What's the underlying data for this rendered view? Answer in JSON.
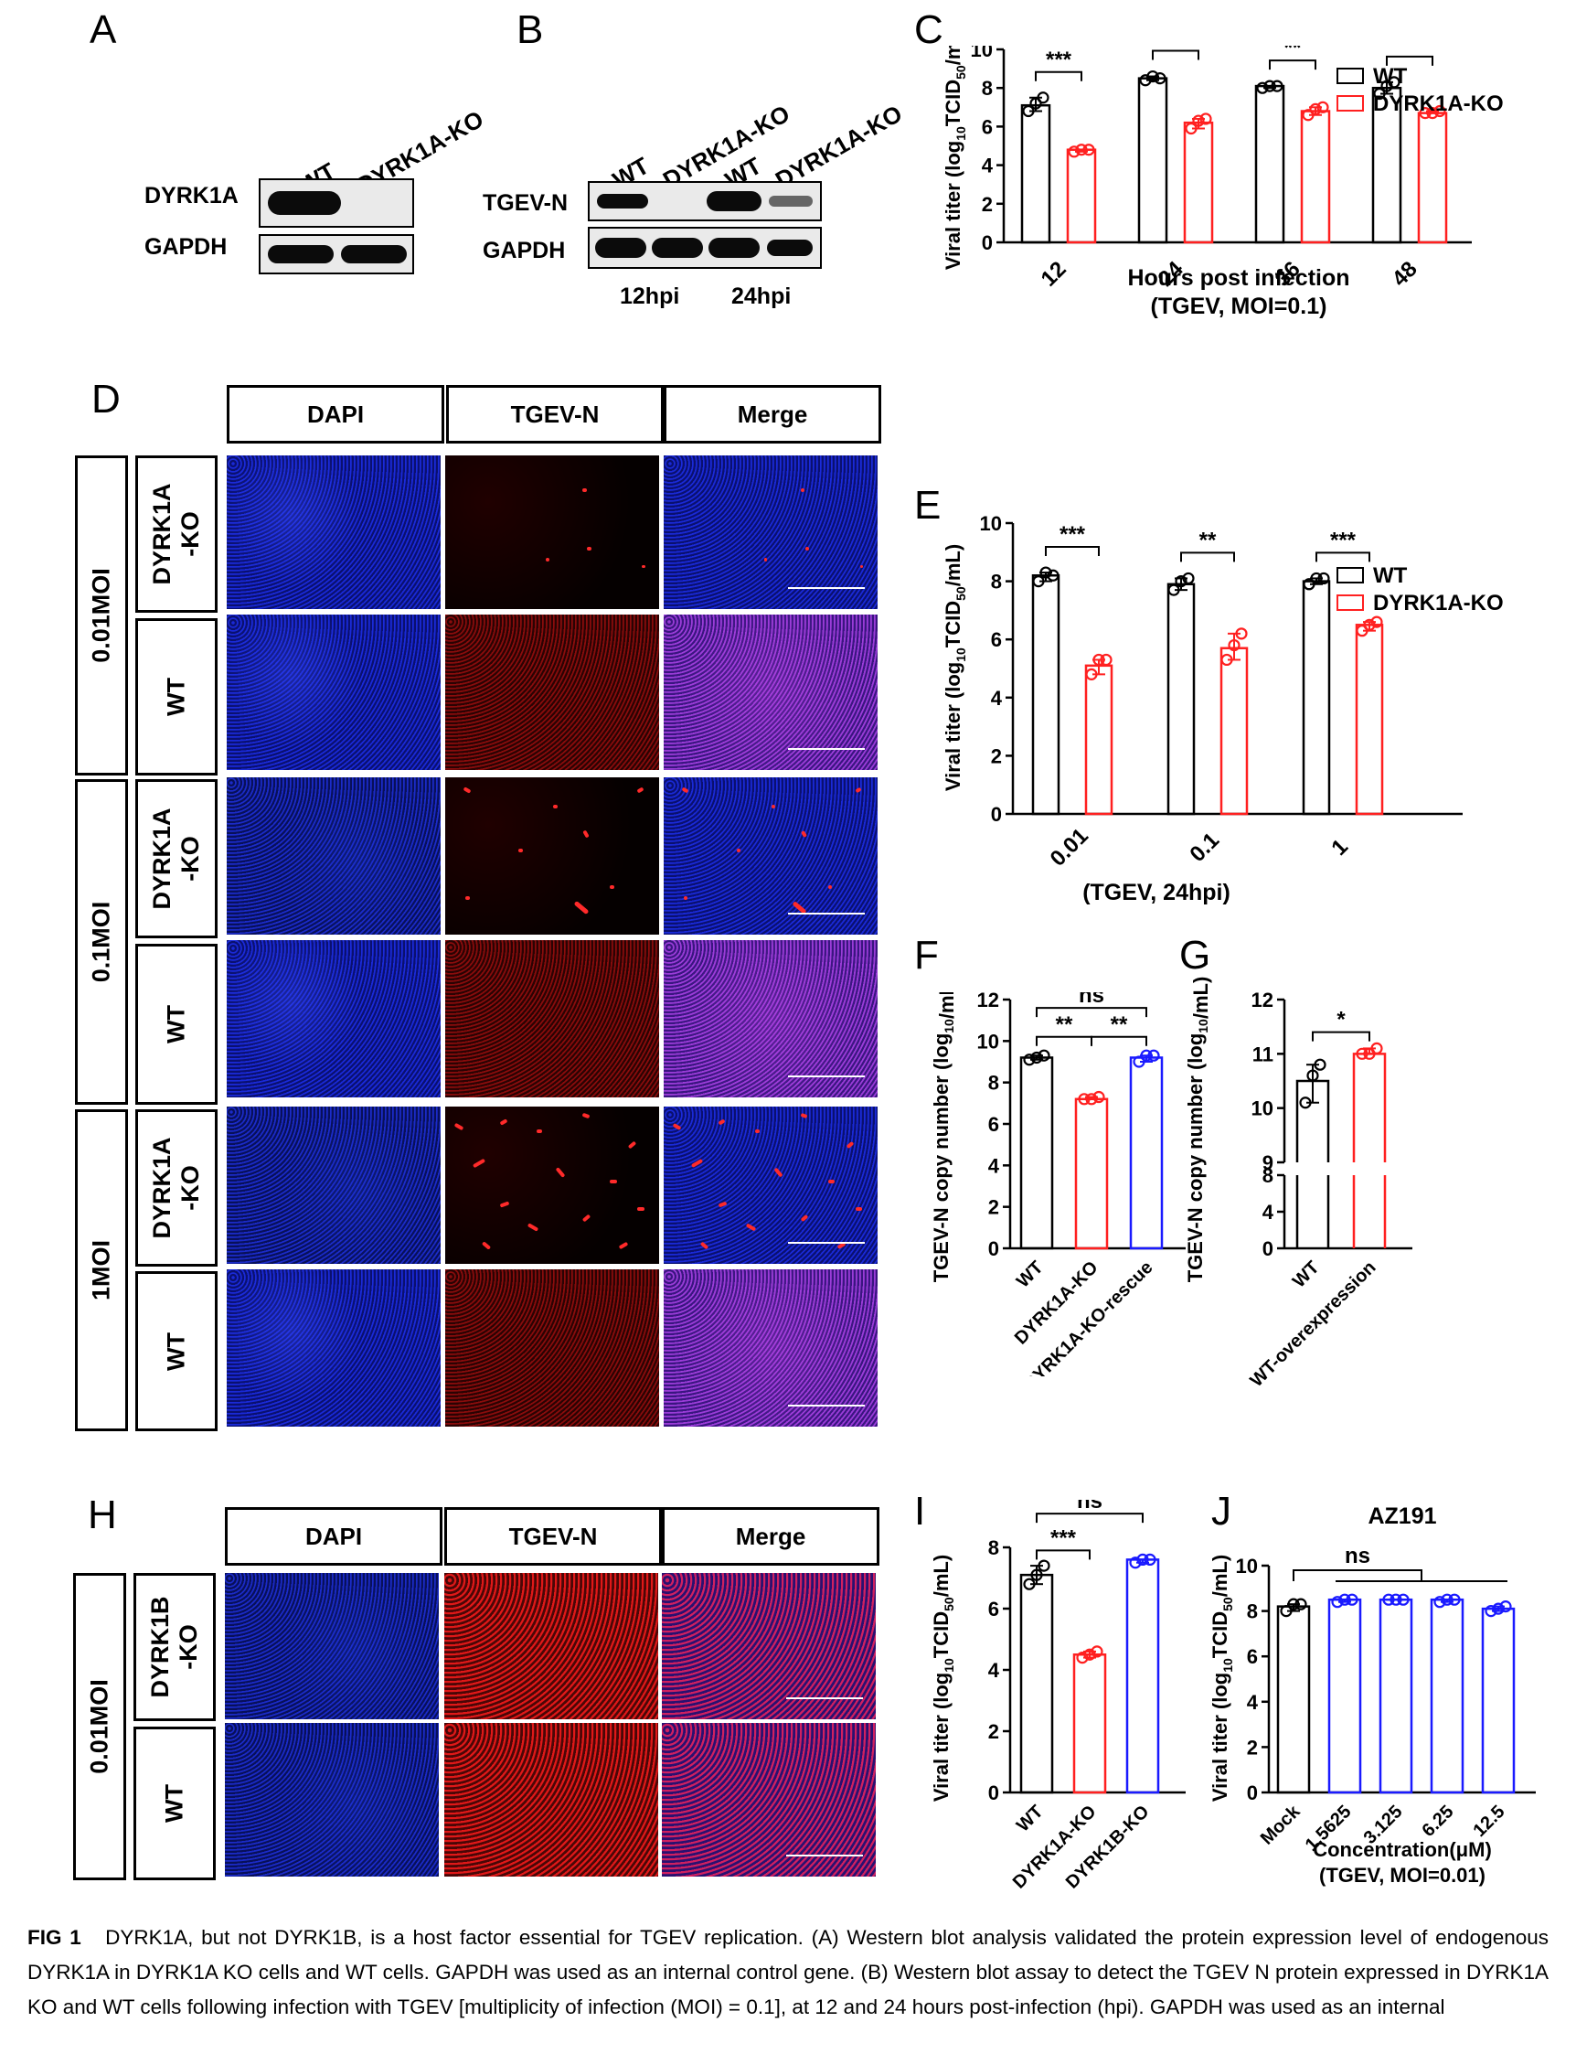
{
  "panel_letters": {
    "A": "A",
    "B": "B",
    "C": "C",
    "D": "D",
    "E": "E",
    "F": "F",
    "G": "G",
    "H": "H",
    "I": "I",
    "J": "J"
  },
  "panelA": {
    "lanes": [
      "WT",
      "DYRK1A-KO"
    ],
    "rows": [
      "DYRK1A",
      "GAPDH"
    ]
  },
  "panelB": {
    "lanes": [
      "WT",
      "DYRK1A-KO",
      "WT",
      "DYRK1A-KO"
    ],
    "rows": [
      "TGEV-N",
      "GAPDH"
    ],
    "timepoints": [
      "12hpi",
      "24hpi"
    ]
  },
  "panelD": {
    "columns": [
      "DAPI",
      "TGEV-N",
      "Merge"
    ],
    "groups": [
      "0.01MOI",
      "0.1MOI",
      "1MOI"
    ],
    "row_labels": [
      "DYRK1A\n-KO",
      "WT"
    ]
  },
  "panelH": {
    "columns": [
      "DAPI",
      "TGEV-N",
      "Merge"
    ],
    "groups": [
      "0.01MOI"
    ],
    "row_labels": [
      "DYRK1B\n-KO",
      "WT"
    ]
  },
  "legend": {
    "wt": "WT",
    "ko": "DYRK1A-KO"
  },
  "colors": {
    "wt": "#000000",
    "ko": "#ff2020",
    "blue": "#1a1aff"
  },
  "chart_data": [
    {
      "panel": "C",
      "type": "bar",
      "categories": [
        "12",
        "24",
        "36",
        "48"
      ],
      "series": [
        {
          "name": "WT",
          "values": [
            7.1,
            8.5,
            8.1,
            8.0
          ],
          "points": [
            [
              6.8,
              7.2,
              7.5
            ],
            [
              8.4,
              8.6,
              8.5
            ],
            [
              8.0,
              8.1,
              8.1
            ],
            [
              7.7,
              8.1,
              8.3
            ]
          ]
        },
        {
          "name": "DYRK1A-KO",
          "values": [
            4.8,
            6.2,
            6.8,
            6.7
          ],
          "points": [
            [
              4.7,
              4.8,
              4.8
            ],
            [
              5.9,
              6.3,
              6.4
            ],
            [
              6.6,
              6.9,
              7.0
            ],
            [
              6.7,
              6.7,
              6.8
            ]
          ]
        }
      ],
      "significance": [
        "***",
        "***",
        "**",
        "**"
      ],
      "ylabel": "Viral titer (log10TCID50/mL)",
      "xlabel": "Hours post infection",
      "xlabel2": "(TGEV, MOI=0.1)",
      "ylim": [
        0,
        10
      ],
      "yticks": [
        "0",
        "2",
        "4",
        "6",
        "8",
        "10"
      ]
    },
    {
      "panel": "E",
      "type": "bar",
      "categories": [
        "0.01",
        "0.1",
        "1"
      ],
      "series": [
        {
          "name": "WT",
          "values": [
            8.2,
            7.9,
            8.0
          ],
          "points": [
            [
              8.0,
              8.3,
              8.2
            ],
            [
              7.7,
              8.0,
              8.1
            ],
            [
              7.9,
              8.1,
              8.1
            ]
          ]
        },
        {
          "name": "DYRK1A-KO",
          "values": [
            5.1,
            5.7,
            6.5
          ],
          "points": [
            [
              4.8,
              5.3,
              5.3
            ],
            [
              5.3,
              5.8,
              6.2
            ],
            [
              6.3,
              6.5,
              6.6
            ]
          ]
        }
      ],
      "significance": [
        "***",
        "**",
        "***"
      ],
      "ylabel": "Viral titer (log10TCID50/mL)",
      "xlabel": "(TGEV, 24hpi)",
      "ylim": [
        0,
        10
      ],
      "yticks": [
        "0",
        "2",
        "4",
        "6",
        "8",
        "10"
      ]
    },
    {
      "panel": "F",
      "type": "bar",
      "categories": [
        "WT",
        "DYRK1A-KO",
        "DYRK1A-KO-rescue"
      ],
      "values": [
        9.2,
        7.2,
        9.2
      ],
      "points": [
        [
          9.1,
          9.2,
          9.3
        ],
        [
          7.2,
          7.2,
          7.3
        ],
        [
          9.0,
          9.3,
          9.3
        ]
      ],
      "significance": [
        {
          "pair": [
            0,
            1
          ],
          "label": "**"
        },
        {
          "pair": [
            1,
            2
          ],
          "label": "**"
        },
        {
          "pair": [
            0,
            2
          ],
          "label": "ns"
        }
      ],
      "ylabel": "TGEV-N copy number (log10/mL)",
      "ylim": [
        0,
        12
      ],
      "yticks": [
        "0",
        "2",
        "4",
        "6",
        "8",
        "10",
        "12"
      ]
    },
    {
      "panel": "G",
      "type": "bar",
      "categories": [
        "WT",
        "WT-overexpression"
      ],
      "values": [
        10.5,
        11.0
      ],
      "points": [
        [
          10.1,
          10.6,
          10.8
        ],
        [
          11.0,
          11.0,
          11.1
        ]
      ],
      "significance": [
        {
          "pair": [
            0,
            1
          ],
          "label": "*"
        }
      ],
      "ylabel": "TGEV-N copy number (log10/mL)",
      "yticks_top": [
        "9",
        "10",
        "11",
        "12"
      ],
      "yticks_bottom": [
        "0",
        "4",
        "8"
      ]
    },
    {
      "panel": "I",
      "type": "bar",
      "categories": [
        "WT",
        "DYRK1A-KO",
        "DYRK1B-KO"
      ],
      "values": [
        7.1,
        4.5,
        7.6
      ],
      "points": [
        [
          6.8,
          7.1,
          7.4
        ],
        [
          4.4,
          4.5,
          4.6
        ],
        [
          7.5,
          7.6,
          7.6
        ]
      ],
      "significance": [
        {
          "pair": [
            0,
            1
          ],
          "label": "***"
        },
        {
          "pair": [
            0,
            2
          ],
          "label": "ns"
        }
      ],
      "ylabel": "Viral titer (log10TCID50/mL)",
      "ylim": [
        0,
        8
      ],
      "yticks": [
        "0",
        "2",
        "4",
        "6",
        "8"
      ]
    },
    {
      "panel": "J",
      "type": "bar",
      "title": "AZ191",
      "categories": [
        "Mock",
        "1.5625",
        "3.125",
        "6.25",
        "12.5"
      ],
      "values": [
        8.2,
        8.5,
        8.5,
        8.5,
        8.1
      ],
      "points": [
        [
          8.0,
          8.3,
          8.3
        ],
        [
          8.4,
          8.5,
          8.5
        ],
        [
          8.5,
          8.5,
          8.5
        ],
        [
          8.4,
          8.5,
          8.5
        ],
        [
          8.0,
          8.1,
          8.2
        ]
      ],
      "significance": [
        {
          "label": "ns"
        }
      ],
      "ylabel": "Viral titer (log10TCID50/mL)",
      "xlabel": "Concentration(μM)",
      "xlabel2": "(TGEV, MOI=0.01)",
      "ylim": [
        0,
        10
      ],
      "yticks": [
        "0",
        "2",
        "4",
        "6",
        "8",
        "10"
      ]
    }
  ],
  "caption": {
    "label": "FIG 1",
    "text": "DYRK1A, but not DYRK1B, is a host factor essential for TGEV replication. (A) Western blot analysis validated the protein expression level of endogenous DYRK1A in DYRK1A KO cells and WT cells. GAPDH was used as an internal control gene. (B) Western blot assay to detect the TGEV N protein expressed in DYRK1A KO and WT cells following infection with TGEV [multiplicity of infection (MOI) = 0.1], at 12 and 24 hours post-infection (hpi). GAPDH was used as an internal"
  }
}
